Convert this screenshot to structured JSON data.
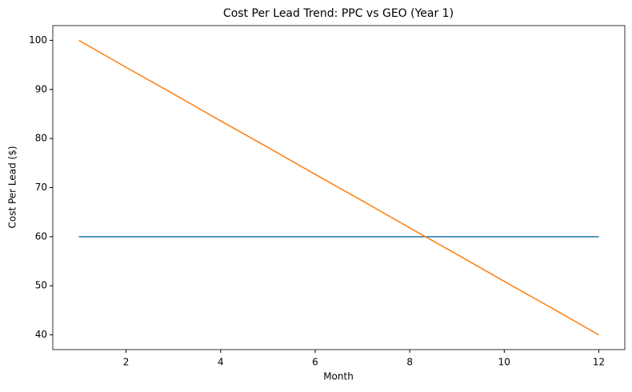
{
  "chart_data": {
    "type": "line",
    "title": "Cost Per Lead Trend: PPC vs GEO (Year 1)",
    "x_label": "Month",
    "y_label": "Cost Per Lead ($)",
    "x": [
      1,
      2,
      3,
      4,
      5,
      6,
      7,
      8,
      9,
      10,
      11,
      12
    ],
    "series": [
      {
        "color": "#1f77b4",
        "values": [
          60,
          60,
          60,
          60,
          60,
          60,
          60,
          60,
          60,
          60,
          60,
          60
        ]
      },
      {
        "color": "#ff7f0e",
        "values": [
          100,
          94.5,
          89.1,
          83.6,
          78.2,
          72.7,
          67.3,
          61.8,
          56.4,
          50.9,
          45.5,
          40
        ]
      }
    ],
    "xlim": [
      0.45,
      12.55
    ],
    "xticks": [
      2,
      4,
      6,
      8,
      10,
      12
    ],
    "ylim": [
      37,
      103
    ],
    "yticks": [
      40,
      50,
      60,
      70,
      80,
      90,
      100
    ],
    "grid": false
  }
}
